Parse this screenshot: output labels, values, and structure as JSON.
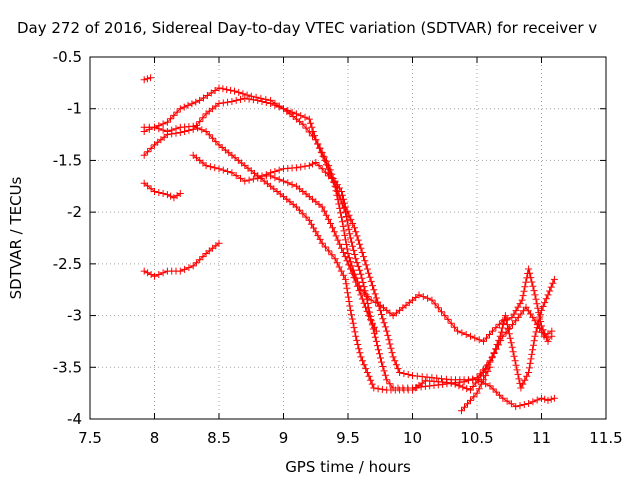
{
  "chart_data": {
    "type": "scatter",
    "title": "Day 272 of 2016, Sidereal Day-to-day VTEC variation (SDTVAR) for receiver v",
    "xlabel": "GPS time / hours",
    "ylabel": "SDTVAR / TECUs",
    "xlim": [
      7.5,
      11.5
    ],
    "ylim": [
      -4,
      -0.5
    ],
    "xticks": [
      "7.5",
      "8",
      "8.5",
      "9",
      "9.5",
      "10",
      "10.5",
      "11",
      "11.5"
    ],
    "yticks": [
      "-0.5",
      "-1",
      "-1.5",
      "-2",
      "-2.5",
      "-3",
      "-3.5",
      "-4"
    ],
    "xtick_values": [
      7.5,
      8,
      8.5,
      9,
      9.5,
      10,
      10.5,
      11,
      11.5
    ],
    "ytick_values": [
      -0.5,
      -1,
      -1.5,
      -2,
      -2.5,
      -3,
      -3.5,
      -4
    ],
    "grid": true,
    "marker": "plus",
    "color": "#ff0000",
    "series": [
      {
        "values": [
          [
            7.92,
            -0.72
          ],
          [
            7.97,
            -0.7
          ]
        ]
      },
      {
        "values": [
          [
            7.92,
            -1.18
          ],
          [
            8.0,
            -1.18
          ],
          [
            8.1,
            -1.13
          ],
          [
            8.2,
            -1.0
          ],
          [
            8.35,
            -0.92
          ],
          [
            8.5,
            -0.8
          ],
          [
            8.62,
            -0.83
          ],
          [
            8.75,
            -0.88
          ],
          [
            8.9,
            -0.92
          ],
          [
            9.0,
            -1.0
          ],
          [
            9.15,
            -1.15
          ],
          [
            9.25,
            -1.3
          ],
          [
            9.35,
            -1.55
          ],
          [
            9.42,
            -1.8
          ],
          [
            9.48,
            -2.0
          ],
          [
            9.52,
            -2.25
          ],
          [
            9.56,
            -2.45
          ],
          [
            9.6,
            -2.6
          ],
          [
            9.64,
            -2.8
          ],
          [
            9.68,
            -3.05
          ],
          [
            9.72,
            -3.25
          ],
          [
            9.76,
            -3.45
          ],
          [
            9.8,
            -3.62
          ],
          [
            9.85,
            -3.7
          ],
          [
            10.0,
            -3.7
          ],
          [
            10.2,
            -3.67
          ],
          [
            10.4,
            -3.64
          ],
          [
            10.5,
            -3.6
          ],
          [
            10.6,
            -3.45
          ],
          [
            10.7,
            -3.2
          ],
          [
            10.8,
            -3.05
          ],
          [
            10.88,
            -2.92
          ],
          [
            10.95,
            -3.05
          ],
          [
            11.02,
            -3.2
          ],
          [
            11.08,
            -3.15
          ]
        ]
      },
      {
        "values": [
          [
            7.92,
            -1.22
          ],
          [
            8.0,
            -1.18
          ],
          [
            8.1,
            -1.22
          ],
          [
            8.2,
            -1.18
          ],
          [
            8.3,
            -1.17
          ],
          [
            8.4,
            -1.22
          ],
          [
            8.5,
            -1.35
          ],
          [
            8.6,
            -1.45
          ],
          [
            8.7,
            -1.55
          ],
          [
            8.8,
            -1.65
          ],
          [
            8.9,
            -1.75
          ],
          [
            9.0,
            -1.85
          ],
          [
            9.1,
            -1.95
          ],
          [
            9.2,
            -2.08
          ],
          [
            9.3,
            -2.3
          ],
          [
            9.4,
            -2.45
          ],
          [
            9.48,
            -2.65
          ],
          [
            9.52,
            -2.95
          ],
          [
            9.56,
            -3.2
          ],
          [
            9.6,
            -3.4
          ],
          [
            9.65,
            -3.55
          ],
          [
            9.7,
            -3.7
          ],
          [
            9.8,
            -3.72
          ],
          [
            10.0,
            -3.72
          ],
          [
            10.1,
            -3.63
          ],
          [
            10.3,
            -3.65
          ],
          [
            10.45,
            -3.72
          ],
          [
            10.55,
            -3.55
          ],
          [
            10.62,
            -3.4
          ],
          [
            10.68,
            -3.2
          ],
          [
            10.72,
            -3.0
          ],
          [
            10.78,
            -3.35
          ],
          [
            10.84,
            -3.7
          ],
          [
            10.9,
            -3.55
          ],
          [
            10.95,
            -3.2
          ],
          [
            11.0,
            -2.95
          ],
          [
            11.05,
            -2.8
          ],
          [
            11.1,
            -2.65
          ]
        ]
      },
      {
        "values": [
          [
            7.92,
            -1.45
          ],
          [
            8.0,
            -1.35
          ],
          [
            8.1,
            -1.25
          ],
          [
            8.2,
            -1.23
          ],
          [
            8.3,
            -1.2
          ],
          [
            8.4,
            -1.05
          ],
          [
            8.5,
            -0.95
          ],
          [
            8.6,
            -0.93
          ],
          [
            8.7,
            -0.9
          ],
          [
            8.8,
            -0.92
          ],
          [
            8.9,
            -0.95
          ],
          [
            9.0,
            -1.0
          ],
          [
            9.1,
            -1.05
          ],
          [
            9.2,
            -1.1
          ],
          [
            9.25,
            -1.3
          ],
          [
            9.32,
            -1.5
          ],
          [
            9.4,
            -1.75
          ],
          [
            9.45,
            -2.05
          ],
          [
            9.5,
            -2.4
          ],
          [
            9.55,
            -2.6
          ],
          [
            9.6,
            -2.75
          ],
          [
            9.68,
            -2.85
          ],
          [
            9.75,
            -2.9
          ],
          [
            9.85,
            -3.0
          ],
          [
            9.95,
            -2.9
          ],
          [
            10.05,
            -2.8
          ],
          [
            10.15,
            -2.85
          ],
          [
            10.25,
            -3.0
          ],
          [
            10.35,
            -3.15
          ],
          [
            10.45,
            -3.2
          ],
          [
            10.55,
            -3.25
          ],
          [
            10.62,
            -3.15
          ],
          [
            10.7,
            -3.05
          ],
          [
            10.77,
            -3.02
          ],
          [
            10.85,
            -2.85
          ],
          [
            10.9,
            -2.55
          ],
          [
            10.95,
            -2.8
          ],
          [
            11.0,
            -3.1
          ],
          [
            11.05,
            -3.25
          ],
          [
            11.08,
            -3.2
          ]
        ]
      },
      {
        "values": [
          [
            8.3,
            -1.45
          ],
          [
            8.4,
            -1.55
          ],
          [
            8.5,
            -1.58
          ],
          [
            8.6,
            -1.62
          ],
          [
            8.7,
            -1.7
          ],
          [
            8.8,
            -1.67
          ],
          [
            8.9,
            -1.62
          ],
          [
            9.0,
            -1.58
          ],
          [
            9.1,
            -1.57
          ],
          [
            9.2,
            -1.55
          ],
          [
            9.25,
            -1.52
          ],
          [
            9.3,
            -1.58
          ],
          [
            9.35,
            -1.65
          ],
          [
            9.4,
            -1.7
          ],
          [
            9.45,
            -1.8
          ],
          [
            9.48,
            -1.95
          ],
          [
            9.55,
            -2.15
          ],
          [
            9.6,
            -2.35
          ],
          [
            9.65,
            -2.55
          ],
          [
            9.7,
            -2.75
          ],
          [
            9.75,
            -2.95
          ],
          [
            9.8,
            -3.15
          ],
          [
            9.85,
            -3.4
          ],
          [
            9.9,
            -3.55
          ],
          [
            10.0,
            -3.58
          ],
          [
            10.15,
            -3.6
          ],
          [
            10.3,
            -3.62
          ],
          [
            10.5,
            -3.62
          ],
          [
            10.6,
            -3.68
          ],
          [
            10.7,
            -3.8
          ],
          [
            10.8,
            -3.88
          ],
          [
            10.9,
            -3.85
          ],
          [
            11.0,
            -3.8
          ],
          [
            11.05,
            -3.82
          ],
          [
            11.1,
            -3.8
          ]
        ]
      },
      {
        "values": [
          [
            7.92,
            -1.72
          ],
          [
            8.0,
            -1.8
          ],
          [
            8.1,
            -1.83
          ],
          [
            8.15,
            -1.86
          ],
          [
            8.2,
            -1.82
          ]
        ]
      },
      {
        "values": [
          [
            7.92,
            -2.57
          ],
          [
            8.0,
            -2.62
          ],
          [
            8.1,
            -2.57
          ],
          [
            8.2,
            -2.57
          ],
          [
            8.3,
            -2.52
          ],
          [
            8.4,
            -2.4
          ],
          [
            8.5,
            -2.3
          ]
        ]
      },
      {
        "values": [
          [
            8.8,
            -1.65
          ],
          [
            8.9,
            -1.65
          ],
          [
            9.0,
            -1.7
          ],
          [
            9.1,
            -1.75
          ],
          [
            9.2,
            -1.85
          ],
          [
            9.3,
            -1.95
          ],
          [
            9.38,
            -2.15
          ],
          [
            9.45,
            -2.35
          ],
          [
            9.52,
            -2.55
          ],
          [
            9.6,
            -2.8
          ],
          [
            9.66,
            -3.0
          ],
          [
            9.72,
            -3.15
          ]
        ]
      },
      {
        "values": [
          [
            10.38,
            -3.92
          ],
          [
            10.45,
            -3.82
          ],
          [
            10.5,
            -3.75
          ],
          [
            10.55,
            -3.62
          ],
          [
            10.6,
            -3.5
          ]
        ]
      }
    ]
  }
}
